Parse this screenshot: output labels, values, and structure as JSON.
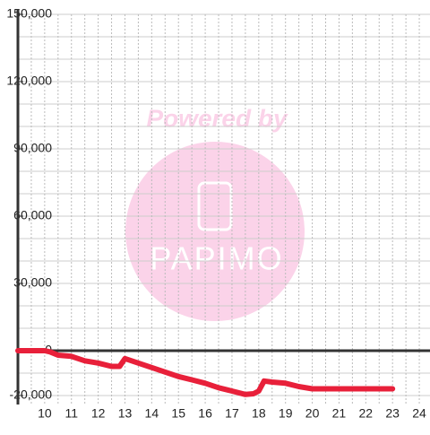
{
  "chart_data": {
    "type": "line",
    "watermark": {
      "top": "Powered by",
      "logo": "PAPIMO"
    },
    "xlim": [
      9,
      24.4
    ],
    "xticks": [
      10,
      11,
      12,
      13,
      14,
      15,
      16,
      17,
      18,
      19,
      20,
      21,
      22,
      23,
      24
    ],
    "x_gridlines": [
      9.5,
      10,
      10.5,
      11,
      11.5,
      12,
      12.5,
      13,
      13.5,
      14,
      14.5,
      15,
      15.5,
      16,
      16.5,
      17,
      17.5,
      18,
      18.5,
      19,
      19.5,
      20,
      20.5,
      21,
      21.5,
      22,
      22.5,
      23,
      23.5,
      24
    ],
    "ylim": [
      -24000,
      150000
    ],
    "yticks": [
      {
        "value": 150000,
        "label": "150,000"
      },
      {
        "value": 120000,
        "label": "120,000"
      },
      {
        "value": 90000,
        "label": "90,000"
      },
      {
        "value": 60000,
        "label": "60,000"
      },
      {
        "value": 30000,
        "label": "30,000"
      },
      0,
      {
        "value": -20000,
        "label": "-20,000"
      }
    ],
    "y_gridlines": [
      -20000,
      -10000,
      10000,
      20000,
      30000,
      40000,
      50000,
      60000,
      70000,
      80000,
      90000,
      100000,
      110000,
      120000,
      130000,
      140000,
      150000
    ],
    "grid": true,
    "series": [
      {
        "color": "#e8203a",
        "x": [
          9,
          10,
          10.2,
          10.5,
          11,
          11.5,
          12,
          12.5,
          12.8,
          13,
          13.5,
          14,
          14.5,
          15,
          15.5,
          16,
          16.5,
          17,
          17.5,
          17.8,
          18,
          18.2,
          18.5,
          19,
          19.5,
          20,
          21,
          22,
          23
        ],
        "values": [
          0,
          0,
          -500,
          -2000,
          -2500,
          -4500,
          -5500,
          -7000,
          -7000,
          -3500,
          -5500,
          -7500,
          -9500,
          -11500,
          -13000,
          -14500,
          -16500,
          -18000,
          -19500,
          -19200,
          -18000,
          -13500,
          -14000,
          -14500,
          -16000,
          -17000,
          -17000,
          -17000,
          -17000
        ]
      }
    ]
  }
}
